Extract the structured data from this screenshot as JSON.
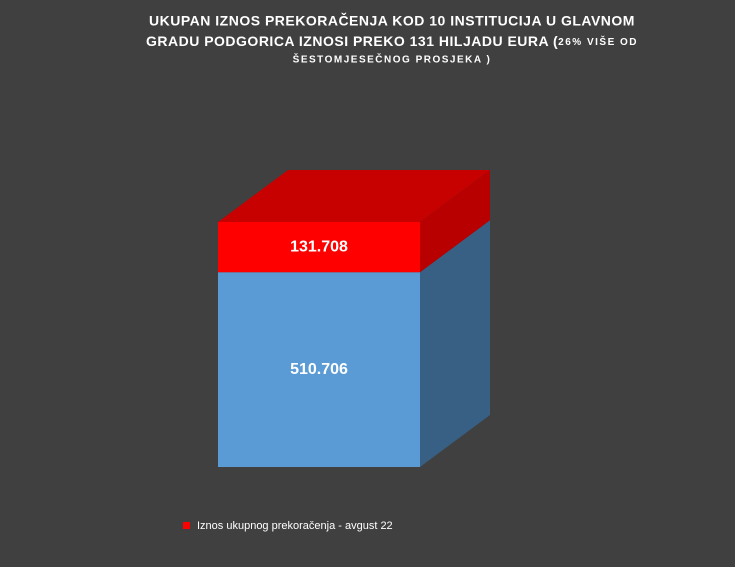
{
  "chart_data": {
    "type": "stacked-bar-3d",
    "title": [
      "UKUPAN IZNOS PREKORAČENJA  KOD 10 INSTITUCIJA U GLAVNOM",
      "GRADU PODGORICA IZNOSI PREKO 131 HILJADU EURA (",
      "26% VIŠE OD",
      "ŠESTOMJESEČNOG  PROSJEKA  )"
    ],
    "categories": [
      null
    ],
    "series": [
      {
        "color": "#5b9bd5",
        "values": [
          510706
        ],
        "value_labels": [
          "510.706"
        ]
      },
      {
        "name": "Iznos ukupnog prekoračenja -  avgust 22",
        "color": "#ff0000",
        "values": [
          131708
        ],
        "value_labels": [
          "131.708"
        ]
      }
    ]
  }
}
